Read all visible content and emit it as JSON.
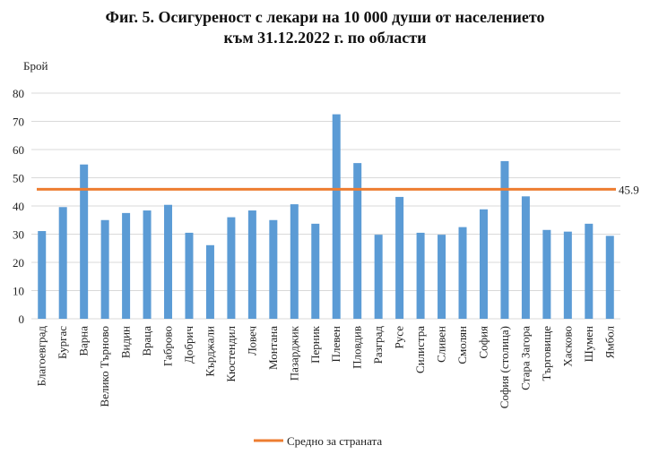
{
  "chart_data": {
    "type": "bar",
    "title_line1": "Фиг. 5. Осигуреност с лекари на 10 000 души от населението",
    "title_line2": "към 31.12.2022 г. по области",
    "ylabel": "Брой",
    "xlabel": "",
    "ylim": [
      0,
      80
    ],
    "yticks": [
      0,
      10,
      20,
      30,
      40,
      50,
      60,
      70,
      80
    ],
    "grid": true,
    "categories": [
      "Благоевград",
      "Бургас",
      "Варна",
      "Велико Търново",
      "Видин",
      "Враца",
      "Габрово",
      "Добрич",
      "Кърджали",
      "Кюстендил",
      "Ловеч",
      "Монтана",
      "Пазарджик",
      "Перник",
      "Плевен",
      "Пловдив",
      "Разград",
      "Русе",
      "Силистра",
      "Сливен",
      "Смолян",
      "София",
      "София (столица)",
      "Стара Загора",
      "Търговище",
      "Хасково",
      "Шумен",
      "Ямбол"
    ],
    "values": [
      31.1,
      39.6,
      54.7,
      35.0,
      37.5,
      38.4,
      40.4,
      30.5,
      26.1,
      36.0,
      38.4,
      35.0,
      40.6,
      33.7,
      72.5,
      55.2,
      29.8,
      43.2,
      30.5,
      29.8,
      32.5,
      38.8,
      55.9,
      43.4,
      31.5,
      30.9,
      33.7,
      29.4
    ],
    "bar_color": "#5b9bd5",
    "average": {
      "value": 45.9,
      "label": "45.9",
      "name": "Средно за страната",
      "color": "#ed7d31"
    },
    "legend_position": "bottom"
  }
}
